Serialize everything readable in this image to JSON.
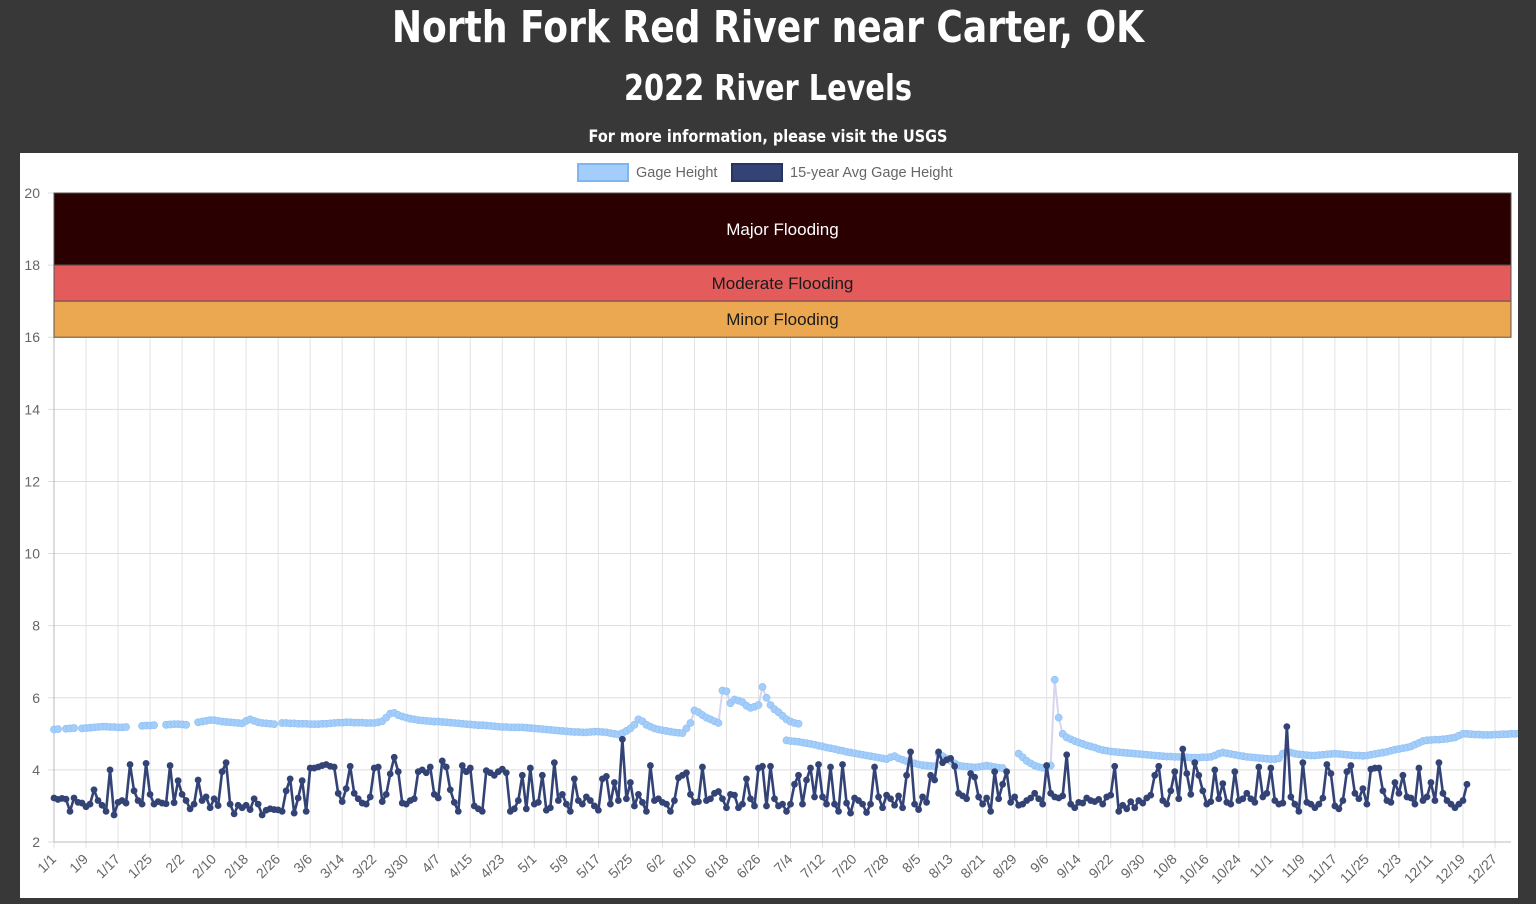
{
  "header": {
    "title": "North Fork Red River near Carter, OK",
    "subtitle": "2022 River Levels",
    "info_prefix": "For more information, please visit the ",
    "info_link": "USGS"
  },
  "chart_data": {
    "type": "line",
    "title": "",
    "xlabel": "",
    "ylabel": "",
    "ylim": [
      2,
      20
    ],
    "yticks": [
      2,
      4,
      6,
      8,
      10,
      12,
      14,
      16,
      18,
      20
    ],
    "grid": true,
    "legend_position": "top",
    "days": 365,
    "x_tick_labels": [
      "1/1",
      "1/9",
      "1/17",
      "1/25",
      "2/2",
      "2/10",
      "2/18",
      "2/26",
      "3/6",
      "3/14",
      "3/22",
      "3/30",
      "4/7",
      "4/15",
      "4/23",
      "5/1",
      "5/9",
      "5/17",
      "5/25",
      "6/2",
      "6/10",
      "6/18",
      "6/26",
      "7/4",
      "7/12",
      "7/20",
      "7/28",
      "8/5",
      "8/13",
      "8/21",
      "8/29",
      "9/6",
      "9/14",
      "9/22",
      "9/30",
      "10/8",
      "10/16",
      "10/24",
      "11/1",
      "11/9",
      "11/17",
      "11/25",
      "12/3",
      "12/11",
      "12/19",
      "12/27"
    ],
    "flood_bands": [
      {
        "label": "Major Flooding",
        "from": 18,
        "to": 20,
        "color": "#2a0000",
        "text_color": "#ffffff"
      },
      {
        "label": "Moderate Flooding",
        "from": 17,
        "to": 18,
        "color": "#e35b5b",
        "text_color": "#1a1a1a"
      },
      {
        "label": "Minor Flooding",
        "from": 16,
        "to": 17,
        "color": "#eba850",
        "text_color": "#1a1a1a"
      }
    ],
    "series": [
      {
        "name": "Gage Height",
        "color": "#a3cdfa",
        "segments": [
          {
            "start_day": 1,
            "values": [
              5.12,
              5.13
            ]
          },
          {
            "start_day": 4,
            "values": [
              5.14,
              5.15,
              5.16
            ]
          },
          {
            "start_day": 8,
            "values": [
              5.15,
              5.16,
              5.17,
              5.18,
              5.19,
              5.2,
              5.2,
              5.19,
              5.19,
              5.18,
              5.18,
              5.19
            ]
          },
          {
            "start_day": 23,
            "values": [
              5.22,
              5.23,
              5.23,
              5.24
            ]
          },
          {
            "start_day": 29,
            "values": [
              5.25,
              5.26,
              5.27,
              5.27,
              5.26,
              5.25
            ]
          },
          {
            "start_day": 37,
            "values": [
              5.32,
              5.34,
              5.36,
              5.38,
              5.38,
              5.36,
              5.34,
              5.33,
              5.32,
              5.31,
              5.3,
              5.29,
              5.36,
              5.4,
              5.36,
              5.32,
              5.3,
              5.29,
              5.28,
              5.27
            ]
          },
          {
            "start_day": 58,
            "values": [
              5.3,
              5.3,
              5.29,
              5.29,
              5.28,
              5.28,
              5.28,
              5.27,
              5.27,
              5.27,
              5.28,
              5.28,
              5.29,
              5.3,
              5.31,
              5.31,
              5.32,
              5.32,
              5.31,
              5.31,
              5.31,
              5.3,
              5.3,
              5.3,
              5.32,
              5.35,
              5.45,
              5.56,
              5.58,
              5.52,
              5.48,
              5.45,
              5.42,
              5.4,
              5.38,
              5.37,
              5.36,
              5.35,
              5.34,
              5.34,
              5.33,
              5.32,
              5.31,
              5.3,
              5.29,
              5.28,
              5.27,
              5.26,
              5.25,
              5.24,
              5.24,
              5.23,
              5.22,
              5.21,
              5.2,
              5.19,
              5.19,
              5.18,
              5.18,
              5.18,
              5.18,
              5.17,
              5.16,
              5.15,
              5.14,
              5.13,
              5.12,
              5.11,
              5.1,
              5.09,
              5.08,
              5.07,
              5.06,
              5.05,
              5.05,
              5.04,
              5.04,
              5.05,
              5.06,
              5.06,
              5.05,
              5.04,
              5.02,
              5.0,
              4.98,
              5.02,
              5.08,
              5.15,
              5.25,
              5.4,
              5.35,
              5.25,
              5.2,
              5.15,
              5.12,
              5.1,
              5.08,
              5.06,
              5.04,
              5.03,
              5.02,
              5.15,
              5.3,
              5.65,
              5.6,
              5.52,
              5.45,
              5.4,
              5.35,
              5.3,
              6.2,
              6.18,
              5.85,
              5.95,
              5.92,
              5.88,
              5.78,
              5.72,
              5.75,
              5.8,
              6.3,
              6.0,
              5.8,
              5.68,
              5.6,
              5.5,
              5.4,
              5.34,
              5.3,
              5.28
            ]
          },
          {
            "start_day": 184,
            "values": [
              4.82,
              4.8,
              4.79,
              4.78,
              4.76,
              4.74,
              4.72,
              4.7,
              4.67,
              4.65,
              4.62,
              4.6,
              4.58,
              4.55,
              4.53,
              4.5,
              4.48,
              4.46,
              4.44,
              4.42,
              4.4,
              4.38,
              4.36,
              4.34,
              4.32,
              4.3,
              4.35,
              4.38,
              4.32,
              4.28,
              4.24,
              4.2,
              4.18,
              4.15,
              4.13,
              4.12,
              4.11,
              4.1,
              4.45,
              4.38,
              4.32,
              4.25,
              4.18,
              4.12,
              4.1,
              4.09,
              4.08,
              4.07,
              4.08,
              4.1,
              4.12,
              4.1,
              4.08,
              4.06,
              4.05
            ]
          },
          {
            "start_day": 242,
            "values": [
              4.45,
              4.35,
              4.25,
              4.18,
              4.12,
              4.08,
              4.06,
              4.1,
              4.12,
              6.5,
              5.45,
              5.0,
              4.9,
              4.85,
              4.8,
              4.76,
              4.72,
              4.68,
              4.65,
              4.62,
              4.58,
              4.55,
              4.53,
              4.51,
              4.5,
              4.49,
              4.48,
              4.47,
              4.46,
              4.45,
              4.44,
              4.43,
              4.42,
              4.41,
              4.4,
              4.39,
              4.38,
              4.37,
              4.37,
              4.36,
              4.36,
              4.35,
              4.35,
              4.34,
              4.34,
              4.34,
              4.35,
              4.35,
              4.36,
              4.4,
              4.45,
              4.48,
              4.46,
              4.44,
              4.42,
              4.4,
              4.38,
              4.36,
              4.35,
              4.34,
              4.33,
              4.32,
              4.31,
              4.3,
              4.3,
              4.32,
              4.45,
              4.5,
              4.48,
              4.45,
              4.43,
              4.42,
              4.41,
              4.4,
              4.4,
              4.41,
              4.42,
              4.43,
              4.44,
              4.45,
              4.44,
              4.43,
              4.42,
              4.41,
              4.4,
              4.4,
              4.39,
              4.4,
              4.42,
              4.44,
              4.46,
              4.48,
              4.5,
              4.53,
              4.56,
              4.58,
              4.6,
              4.62,
              4.65,
              4.7,
              4.75,
              4.8,
              4.82,
              4.83,
              4.84,
              4.84,
              4.85,
              4.86,
              4.88,
              4.9,
              4.95,
              5.0,
              5.0,
              4.99,
              4.98,
              4.98,
              4.97,
              4.97,
              4.97,
              4.98,
              4.98,
              4.99,
              4.99,
              5.0,
              5.0,
              5.01,
              5.01,
              5.02,
              5.02,
              5.02,
              5.03,
              5.03,
              5.04,
              5.04,
              5.05,
              5.05
            ]
          }
        ]
      },
      {
        "name": "15-year Avg Gage Height",
        "color": "#334375",
        "start_day": 1,
        "values": [
          3.22,
          3.18,
          3.21,
          3.19,
          2.85,
          3.22,
          3.1,
          3.08,
          2.98,
          3.05,
          3.45,
          3.15,
          3.02,
          2.85,
          4.0,
          2.75,
          3.1,
          3.15,
          3.08,
          4.15,
          3.42,
          3.15,
          3.05,
          4.18,
          3.32,
          3.05,
          3.12,
          3.08,
          3.06,
          4.12,
          3.09,
          3.7,
          3.32,
          3.15,
          2.92,
          3.05,
          3.72,
          3.15,
          3.25,
          2.95,
          3.2,
          3.01,
          3.95,
          4.2,
          3.05,
          2.78,
          3.02,
          2.95,
          3.02,
          2.9,
          3.2,
          3.05,
          2.75,
          2.88,
          2.92,
          2.9,
          2.89,
          2.85,
          3.42,
          3.75,
          2.8,
          3.22,
          3.7,
          2.85,
          4.05,
          4.05,
          4.08,
          4.12,
          4.15,
          4.1,
          4.08,
          3.35,
          3.12,
          3.48,
          4.1,
          3.35,
          3.2,
          3.08,
          3.05,
          3.25,
          4.05,
          4.08,
          3.12,
          3.32,
          3.89,
          4.35,
          3.95,
          3.08,
          3.05,
          3.15,
          3.2,
          3.95,
          4.0,
          3.92,
          4.08,
          3.32,
          3.22,
          4.25,
          4.08,
          3.45,
          3.1,
          2.85,
          4.12,
          3.95,
          4.05,
          3.0,
          2.92,
          2.85,
          3.98,
          3.92,
          3.85,
          3.95,
          4.02,
          3.92,
          2.85,
          2.92,
          3.15,
          3.85,
          2.92,
          4.05,
          3.05,
          3.1,
          3.85,
          2.88,
          2.95,
          4.2,
          3.15,
          3.32,
          3.05,
          2.85,
          3.75,
          3.15,
          3.05,
          3.25,
          3.15,
          3.0,
          2.88,
          3.75,
          3.82,
          3.05,
          3.65,
          3.15,
          4.85,
          3.2,
          3.65,
          3.0,
          3.32,
          3.1,
          2.85,
          4.12,
          3.15,
          3.2,
          3.1,
          3.05,
          2.85,
          3.15,
          3.78,
          3.85,
          3.92,
          3.32,
          3.1,
          3.12,
          4.08,
          3.15,
          3.2,
          3.35,
          3.4,
          3.2,
          2.95,
          3.32,
          3.3,
          2.95,
          3.05,
          3.75,
          3.2,
          3.0,
          4.05,
          4.1,
          3.0,
          4.1,
          3.2,
          3.0,
          3.05,
          2.85,
          3.05,
          3.6,
          3.85,
          3.05,
          3.72,
          4.05,
          3.25,
          4.15,
          3.25,
          3.05,
          4.08,
          3.05,
          2.85,
          4.15,
          3.08,
          2.8,
          3.22,
          3.15,
          3.05,
          2.82,
          3.05,
          4.08,
          3.25,
          2.95,
          3.3,
          3.2,
          3.02,
          3.28,
          2.95,
          3.85,
          4.5,
          3.05,
          2.9,
          3.25,
          3.1,
          3.85,
          3.72,
          4.5,
          4.2,
          4.28,
          4.32,
          4.1,
          3.35,
          3.28,
          3.2,
          3.9,
          3.8,
          3.25,
          3.05,
          3.22,
          2.85,
          3.95,
          3.2,
          3.6,
          3.95,
          3.1,
          3.25,
          3.02,
          3.05,
          3.15,
          3.22,
          3.35,
          3.2,
          3.05,
          4.12,
          3.35,
          3.25,
          3.22,
          3.28,
          4.42,
          3.05,
          2.95,
          3.1,
          3.08,
          3.22,
          3.15,
          3.12,
          3.18,
          3.05,
          3.25,
          3.3,
          4.1,
          2.85,
          3.02,
          2.92,
          3.12,
          2.95,
          3.15,
          3.08,
          3.22,
          3.3,
          3.85,
          4.1,
          3.15,
          3.05,
          3.42,
          3.95,
          3.2,
          4.58,
          3.9,
          3.32,
          4.2,
          3.85,
          3.42,
          3.05,
          3.12,
          4.0,
          3.2,
          3.62,
          3.1,
          3.05,
          3.95,
          3.15,
          3.2,
          3.35,
          3.2,
          3.1,
          4.08,
          3.25,
          3.35,
          4.05,
          3.15,
          3.05,
          3.08,
          5.2,
          3.25,
          3.05,
          2.85,
          4.2,
          3.1,
          3.05,
          2.95,
          3.05,
          3.22,
          4.15,
          3.9,
          3.0,
          2.92,
          3.15,
          3.95,
          4.12,
          3.35,
          3.2,
          3.48,
          3.05,
          4.02,
          4.05,
          4.05,
          3.42,
          3.15,
          3.1,
          3.65,
          3.35,
          3.85,
          3.25,
          3.22,
          3.05,
          4.05,
          3.15,
          3.25,
          3.65,
          3.15,
          4.2,
          3.35,
          3.15,
          3.05,
          2.95,
          3.05,
          3.15,
          3.6
        ]
      }
    ]
  }
}
